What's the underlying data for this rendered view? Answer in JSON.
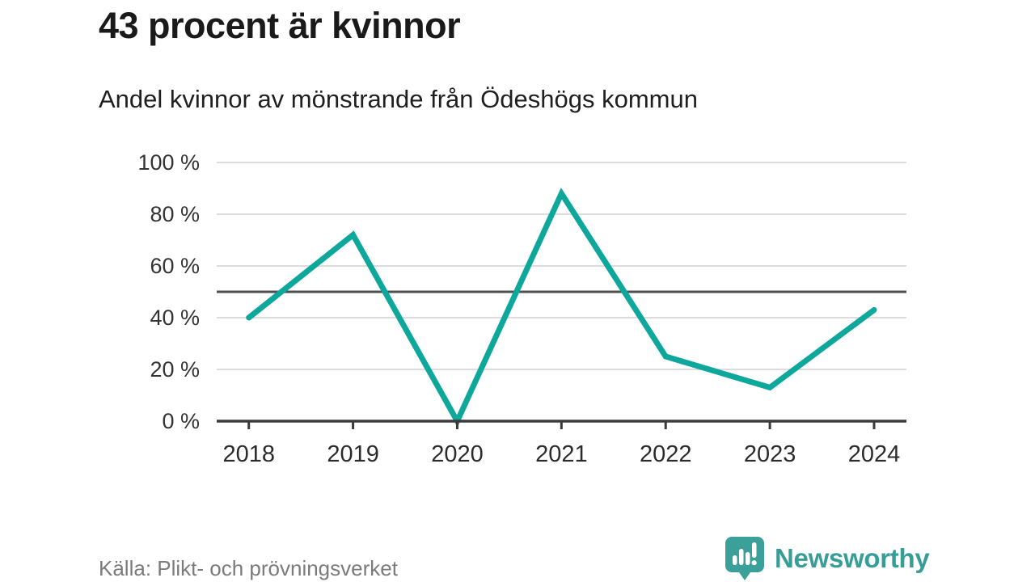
{
  "header": {
    "title": "43 procent är kvinnor",
    "subtitle": "Andel kvinnor av mönstrande från Ödeshögs kommun"
  },
  "chart_data": {
    "type": "line",
    "title": "43 procent är kvinnor",
    "subtitle": "Andel kvinnor av mönstrande från Ödeshögs kommun",
    "x": [
      "2018",
      "2019",
      "2020",
      "2021",
      "2022",
      "2023",
      "2024"
    ],
    "series": [
      {
        "name": "Andel kvinnor av mönstrande",
        "values": [
          40,
          72,
          0,
          88,
          25,
          13,
          43
        ]
      }
    ],
    "xlabel": "",
    "ylabel": "",
    "ylim": [
      0,
      100
    ],
    "yticks": [
      0,
      20,
      40,
      60,
      80,
      100
    ],
    "ytick_suffix": " %",
    "reference_line": 50,
    "grid": true,
    "legend_position": "none",
    "colors": {
      "line": "#0ea79b",
      "grid": "#dcdcdc",
      "reference": "#4f4f4f",
      "axis": "#3b3b3b",
      "ytick_label": "#333333",
      "xtick_label": "#2b2b2b"
    }
  },
  "footer": {
    "source": "Källa: Plikt- och prövningsverket",
    "brand": "Newsworthy",
    "brand_color": "#379e97",
    "logo_color": "#3ba09a"
  }
}
